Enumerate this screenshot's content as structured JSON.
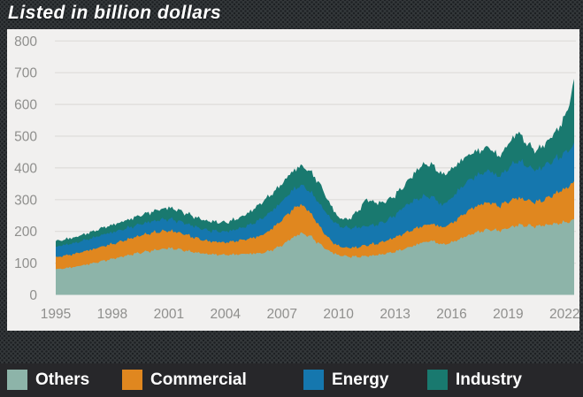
{
  "title": "Listed in billion dollars",
  "legend": {
    "items": [
      {
        "label": "Others",
        "color": "#8db4a9"
      },
      {
        "label": "Commercial",
        "color": "#e0871f"
      },
      {
        "label": "Energy",
        "color": "#1577ae"
      },
      {
        "label": "Industry",
        "color": "#19796f"
      }
    ]
  },
  "colors": {
    "page_bg": "#34383b",
    "panel_bg": "#f1f0ef",
    "grid": "#dedcda",
    "axis_text": "#8f8f8d",
    "legend_bg": "#27272a",
    "legend_text": "#ffffff",
    "title_text": "#ffffff"
  },
  "chart_data": {
    "type": "area",
    "stacked": true,
    "title": "Listed in billion dollars",
    "xlabel": "",
    "ylabel": "billion dollars",
    "grid": true,
    "legend_position": "bottom",
    "xlim": [
      1995,
      2022.5
    ],
    "ylim": [
      0,
      800
    ],
    "y_ticks": [
      0,
      100,
      200,
      300,
      400,
      500,
      600,
      700,
      800
    ],
    "x_ticks": [
      1995,
      1998,
      2001,
      2004,
      2007,
      2010,
      2013,
      2016,
      2019,
      2022
    ],
    "x": [
      1995.0,
      1995.5,
      1996.0,
      1996.5,
      1997.0,
      1997.5,
      1998.0,
      1998.5,
      1999.0,
      1999.5,
      2000.0,
      2000.5,
      2001.0,
      2001.5,
      2002.0,
      2002.5,
      2003.0,
      2003.5,
      2004.0,
      2004.5,
      2005.0,
      2005.5,
      2006.0,
      2006.5,
      2007.0,
      2007.5,
      2008.0,
      2008.5,
      2009.0,
      2009.5,
      2010.0,
      2010.5,
      2011.0,
      2011.5,
      2012.0,
      2012.5,
      2013.0,
      2013.5,
      2014.0,
      2014.5,
      2015.0,
      2015.5,
      2016.0,
      2016.5,
      2017.0,
      2017.5,
      2018.0,
      2018.5,
      2019.0,
      2019.5,
      2020.0,
      2020.5,
      2021.0,
      2021.5,
      2022.0,
      2022.5
    ],
    "series": [
      {
        "name": "Others",
        "color": "#8db4a9",
        "values": [
          80,
          84,
          88,
          94,
          100,
          107,
          113,
          120,
          127,
          133,
          138,
          143,
          147,
          144,
          138,
          133,
          129,
          127,
          126,
          127,
          129,
          130,
          132,
          142,
          156,
          178,
          194,
          185,
          160,
          138,
          125,
          121,
          120,
          122,
          125,
          130,
          136,
          145,
          155,
          166,
          170,
          158,
          165,
          178,
          190,
          200,
          206,
          202,
          210,
          220,
          218,
          216,
          220,
          224,
          228,
          235
        ]
      },
      {
        "name": "Commercial",
        "color": "#e0871f",
        "values": [
          38,
          40,
          41,
          43,
          44,
          46,
          47,
          49,
          51,
          54,
          56,
          56,
          55,
          53,
          50,
          45,
          41,
          40,
          39,
          42,
          45,
          50,
          57,
          68,
          80,
          88,
          92,
          75,
          55,
          38,
          28,
          27,
          30,
          35,
          36,
          40,
          45,
          49,
          52,
          52,
          54,
          54,
          60,
          70,
          80,
          84,
          86,
          78,
          84,
          86,
          80,
          76,
          82,
          95,
          106,
          118
        ]
      },
      {
        "name": "Energy",
        "color": "#1577ae",
        "values": [
          33,
          34,
          34,
          35,
          36,
          37,
          37,
          36,
          36,
          36,
          36,
          37,
          37,
          36,
          35,
          35,
          34,
          34,
          34,
          36,
          40,
          46,
          54,
          56,
          58,
          60,
          60,
          66,
          72,
          70,
          65,
          63,
          62,
          60,
          60,
          62,
          70,
          85,
          90,
          92,
          85,
          70,
          80,
          90,
          95,
          96,
          100,
          92,
          104,
          118,
          108,
          100,
          108,
          108,
          112,
          118
        ]
      },
      {
        "name": "Industry",
        "color": "#19796f",
        "values": [
          17,
          17,
          18,
          19,
          20,
          22,
          23,
          25,
          26,
          28,
          30,
          33,
          36,
          34,
          32,
          30,
          29,
          29,
          29,
          32,
          36,
          44,
          52,
          54,
          56,
          60,
          61,
          63,
          64,
          45,
          25,
          26,
          50,
          85,
          68,
          62,
          63,
          66,
          85,
          102,
          100,
          95,
          90,
          85,
          80,
          75,
          74,
          62,
          76,
          90,
          70,
          62,
          68,
          85,
          110,
          194
        ]
      }
    ]
  }
}
